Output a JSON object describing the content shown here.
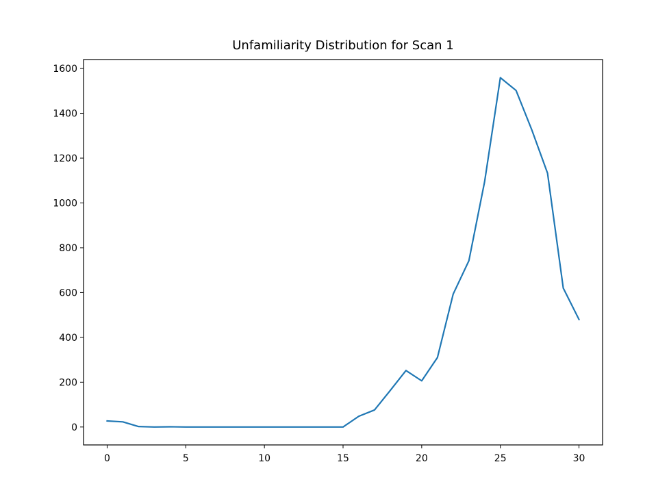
{
  "chart_data": {
    "type": "line",
    "title": "Unfamiliarity Distribution for Scan 1",
    "xlabel": "",
    "ylabel": "",
    "xlim": [
      -1.5,
      31.5
    ],
    "ylim": [
      -80,
      1640
    ],
    "xticks": [
      0,
      5,
      10,
      15,
      20,
      25,
      30
    ],
    "yticks": [
      0,
      200,
      400,
      600,
      800,
      1000,
      1200,
      1400,
      1600
    ],
    "grid": false,
    "series": [
      {
        "color": "#1f77b4",
        "x": [
          0,
          1,
          2,
          3,
          4,
          5,
          6,
          7,
          8,
          9,
          10,
          11,
          12,
          13,
          14,
          15,
          16,
          17,
          18,
          19,
          20,
          21,
          22,
          23,
          24,
          25,
          26,
          27,
          28,
          29,
          30
        ],
        "y": [
          27,
          23,
          2,
          0,
          1,
          0,
          0,
          0,
          0,
          0,
          0,
          0,
          0,
          0,
          0,
          0,
          48,
          76,
          163,
          252,
          206,
          310,
          593,
          742,
          1095,
          1559,
          1502,
          1326,
          1133,
          620,
          480
        ]
      }
    ]
  }
}
